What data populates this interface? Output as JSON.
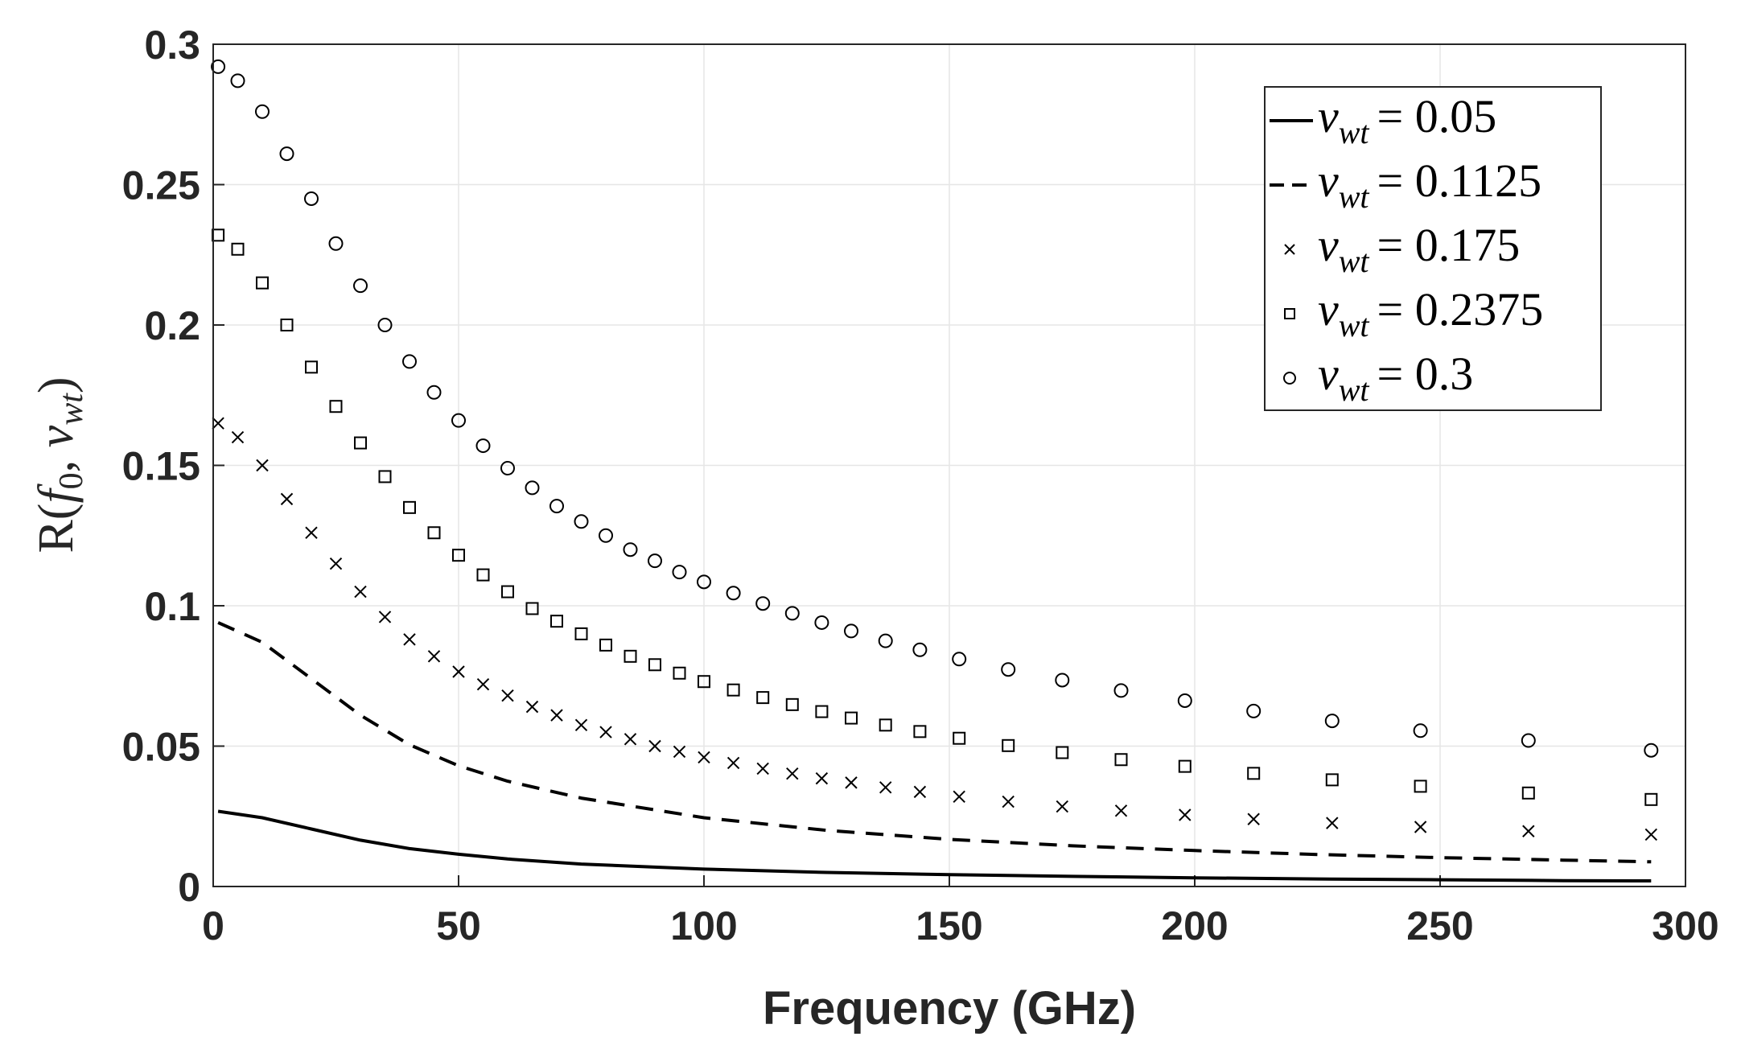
{
  "chart_data": {
    "type": "line",
    "xlabel": "Frequency (GHz)",
    "ylabel_parts": [
      "R(",
      "f",
      "0",
      ", ",
      "v",
      "wt",
      ")"
    ],
    "xlim": [
      0,
      300
    ],
    "ylim": [
      0,
      0.3
    ],
    "grid": true,
    "legend_position": "top-right",
    "x_ticks": [
      "0",
      "50",
      "100",
      "150",
      "200",
      "250",
      "300"
    ],
    "y_ticks": [
      "0",
      "0.05",
      "0.1",
      "0.15",
      "0.2",
      "0.25",
      "0.3"
    ],
    "series": [
      {
        "name": "v_wt = 0.05",
        "legend_var": "v",
        "legend_sub": "wt",
        "legend_value": "= 0.05",
        "style": "solid",
        "x": [
          1,
          10,
          20,
          30,
          40,
          50,
          60,
          75,
          100,
          125,
          150,
          175,
          200,
          225,
          250,
          275,
          293
        ],
        "values": [
          0.0268,
          0.0245,
          0.0205,
          0.0165,
          0.0135,
          0.0115,
          0.0098,
          0.008,
          0.0062,
          0.005,
          0.0042,
          0.0036,
          0.0031,
          0.0027,
          0.0024,
          0.0021,
          0.002
        ]
      },
      {
        "name": "v_wt = 0.1125",
        "legend_var": "v",
        "legend_sub": "wt",
        "legend_value": "= 0.1125",
        "style": "dashed",
        "x": [
          1,
          10,
          20,
          30,
          40,
          50,
          60,
          75,
          100,
          125,
          150,
          175,
          200,
          225,
          250,
          275,
          293
        ],
        "values": [
          0.094,
          0.087,
          0.074,
          0.061,
          0.0505,
          0.043,
          0.0375,
          0.0315,
          0.0245,
          0.02,
          0.0168,
          0.0145,
          0.0128,
          0.0114,
          0.0103,
          0.0094,
          0.0088
        ]
      },
      {
        "name": "v_wt = 0.175",
        "legend_var": "v",
        "legend_sub": "wt",
        "legend_value": "= 0.175",
        "style": "x-marker",
        "x": [
          1,
          5,
          10,
          15,
          20,
          25,
          30,
          35,
          40,
          45,
          50,
          55,
          60,
          65,
          70,
          75,
          80,
          85,
          90,
          95,
          100,
          106,
          112,
          118,
          124,
          130,
          137,
          144,
          152,
          162,
          173,
          185,
          198,
          212,
          228,
          246,
          268,
          293
        ],
        "values": [
          0.165,
          0.16,
          0.15,
          0.138,
          0.126,
          0.115,
          0.105,
          0.096,
          0.088,
          0.082,
          0.0765,
          0.072,
          0.068,
          0.064,
          0.061,
          0.0575,
          0.055,
          0.0525,
          0.05,
          0.048,
          0.046,
          0.044,
          0.042,
          0.0402,
          0.0385,
          0.037,
          0.0353,
          0.0337,
          0.032,
          0.0302,
          0.0285,
          0.027,
          0.0255,
          0.024,
          0.0226,
          0.0212,
          0.0197,
          0.0185
        ]
      },
      {
        "name": "v_wt = 0.2375",
        "legend_var": "v",
        "legend_sub": "wt",
        "legend_value": "= 0.2375",
        "style": "square-marker",
        "x": [
          1,
          5,
          10,
          15,
          20,
          25,
          30,
          35,
          40,
          45,
          50,
          55,
          60,
          65,
          70,
          75,
          80,
          85,
          90,
          95,
          100,
          106,
          112,
          118,
          124,
          130,
          137,
          144,
          152,
          162,
          173,
          185,
          198,
          212,
          228,
          246,
          268,
          293
        ],
        "values": [
          0.232,
          0.227,
          0.215,
          0.2,
          0.185,
          0.171,
          0.158,
          0.146,
          0.135,
          0.126,
          0.118,
          0.111,
          0.105,
          0.099,
          0.0945,
          0.09,
          0.086,
          0.082,
          0.079,
          0.076,
          0.073,
          0.07,
          0.0673,
          0.0648,
          0.0623,
          0.06,
          0.0575,
          0.0552,
          0.0528,
          0.0502,
          0.0477,
          0.0452,
          0.0428,
          0.0403,
          0.038,
          0.0357,
          0.0333,
          0.031
        ]
      },
      {
        "name": "v_wt = 0.3",
        "legend_var": "v",
        "legend_sub": "wt",
        "legend_value": "= 0.3",
        "style": "circle-marker",
        "x": [
          1,
          5,
          10,
          15,
          20,
          25,
          30,
          35,
          40,
          45,
          50,
          55,
          60,
          65,
          70,
          75,
          80,
          85,
          90,
          95,
          100,
          106,
          112,
          118,
          124,
          130,
          137,
          144,
          152,
          162,
          173,
          185,
          198,
          212,
          228,
          246,
          268,
          293
        ],
        "values": [
          0.292,
          0.287,
          0.276,
          0.261,
          0.245,
          0.229,
          0.214,
          0.2,
          0.187,
          0.176,
          0.166,
          0.157,
          0.149,
          0.142,
          0.1355,
          0.13,
          0.125,
          0.12,
          0.116,
          0.112,
          0.1085,
          0.1045,
          0.1008,
          0.0973,
          0.094,
          0.091,
          0.0875,
          0.0843,
          0.081,
          0.0773,
          0.0735,
          0.0698,
          0.0662,
          0.0625,
          0.059,
          0.0555,
          0.052,
          0.0485
        ]
      }
    ]
  }
}
